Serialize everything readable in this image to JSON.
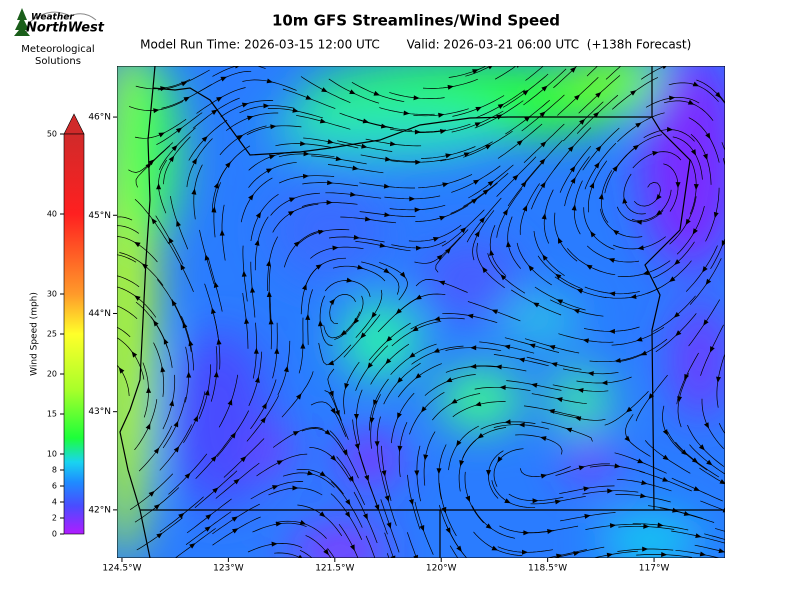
{
  "logo": {
    "name_top": "Weather",
    "name_bottom": "NorthWest",
    "tagline": "Meteorological Solutions"
  },
  "chart_data": {
    "type": "streamline-map",
    "title": "10m GFS Streamlines/Wind Speed",
    "subtitle_run": "Model Run Time: 2026-03-15 12:00 UTC",
    "subtitle_valid": "Valid: 2026-03-21 06:00 UTC  (+138h Forecast)",
    "xlim": [
      -124.57,
      -116.0
    ],
    "ylim": [
      41.51,
      46.52
    ],
    "xticks": [
      {
        "value": -124.5,
        "label": "124.5°W"
      },
      {
        "value": -123,
        "label": "123°W"
      },
      {
        "value": -121.5,
        "label": "121.5°W"
      },
      {
        "value": -120,
        "label": "120°W"
      },
      {
        "value": -118.5,
        "label": "118.5°W"
      },
      {
        "value": -117,
        "label": "117°W"
      }
    ],
    "yticks": [
      {
        "value": 46,
        "label": "46°N"
      },
      {
        "value": 45,
        "label": "45°N"
      },
      {
        "value": 44,
        "label": "44°N"
      },
      {
        "value": 43,
        "label": "43°N"
      },
      {
        "value": 42,
        "label": "42°N"
      }
    ],
    "colorbar": {
      "label": "Wind Speed (mph)",
      "lim": [
        0,
        50
      ],
      "ticks": [
        0,
        2,
        4,
        6,
        8,
        10,
        15,
        20,
        25,
        30,
        40,
        50
      ]
    }
  }
}
